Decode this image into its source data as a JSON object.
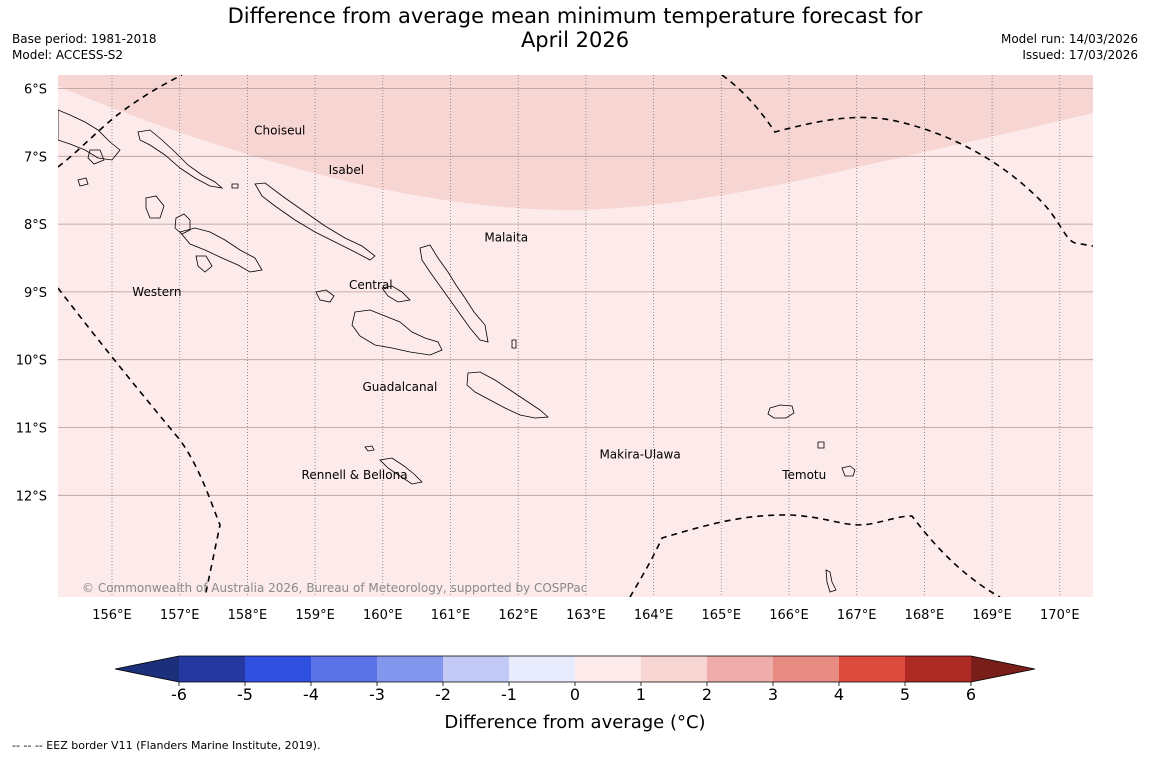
{
  "header": {
    "title_line1": "Difference from average mean minimum temperature forecast for",
    "title_line2": "April 2026",
    "base_period": "Base period: 1981-2018",
    "model": "Model: ACCESS-S2",
    "model_run": "Model run: 14/03/2026",
    "issued": "Issued: 17/03/2026"
  },
  "map": {
    "latitudes": [
      {
        "lat": -6,
        "label": "6°S"
      },
      {
        "lat": -7,
        "label": "7°S"
      },
      {
        "lat": -8,
        "label": "8°S"
      },
      {
        "lat": -9,
        "label": "9°S"
      },
      {
        "lat": -10,
        "label": "10°S"
      },
      {
        "lat": -11,
        "label": "11°S"
      },
      {
        "lat": -12,
        "label": "12°S"
      }
    ],
    "longitudes": [
      {
        "lon": 156,
        "label": "156°E"
      },
      {
        "lon": 157,
        "label": "157°E"
      },
      {
        "lon": 158,
        "label": "158°E"
      },
      {
        "lon": 159,
        "label": "159°E"
      },
      {
        "lon": 160,
        "label": "160°E"
      },
      {
        "lon": 161,
        "label": "161°E"
      },
      {
        "lon": 162,
        "label": "162°E"
      },
      {
        "lon": 163,
        "label": "163°E"
      },
      {
        "lon": 164,
        "label": "164°E"
      },
      {
        "lon": 165,
        "label": "165°E"
      },
      {
        "lon": 166,
        "label": "166°E"
      },
      {
        "lon": 167,
        "label": "167°E"
      },
      {
        "lon": 168,
        "label": "168°E"
      },
      {
        "lon": 169,
        "label": "169°E"
      },
      {
        "lon": 170,
        "label": "170°E"
      }
    ],
    "provinces": [
      {
        "name": "Choiseul",
        "lon": 158.1,
        "lat": -6.62
      },
      {
        "name": "Isabel",
        "lon": 159.2,
        "lat": -7.2
      },
      {
        "name": "Malaita",
        "lon": 161.5,
        "lat": -8.2
      },
      {
        "name": "Western",
        "lon": 156.3,
        "lat": -9.0
      },
      {
        "name": "Central",
        "lon": 159.5,
        "lat": -8.9
      },
      {
        "name": "Guadalcanal",
        "lon": 159.7,
        "lat": -10.4
      },
      {
        "name": "Makira-Ulawa",
        "lon": 163.2,
        "lat": -11.4
      },
      {
        "name": "Rennell & Bellona",
        "lon": 158.8,
        "lat": -11.7
      },
      {
        "name": "Temotu",
        "lon": 165.9,
        "lat": -11.7
      }
    ],
    "anomaly_zones": [
      {
        "category": "1 to 2",
        "color": "#f6d5d3",
        "note": "northern band"
      },
      {
        "category": "0 to 1",
        "color": "#fcebea",
        "note": "remaining area"
      }
    ],
    "copyright": "© Commonwealth of Australia 2026, Bureau of Meteorology, supported by COSPPac"
  },
  "colorbar": {
    "title": "Difference from average (°C)",
    "ticks": [
      "-6",
      "-5",
      "-4",
      "-3",
      "-2",
      "-1",
      "0",
      "1",
      "2",
      "3",
      "4",
      "5",
      "6"
    ],
    "colors": [
      "#24389f",
      "#3050e0",
      "#5b73e6",
      "#8396ee",
      "#c3c9f5",
      "#e8ebfc",
      "#fcebea",
      "#f6d5d3",
      "#eeadaa",
      "#e78a82",
      "#dd4b3f",
      "#ae2a24"
    ],
    "under_color": "#1c2f7a",
    "over_color": "#7a1e1a"
  },
  "footnote": "--  --  -- EEZ border V11 (Flanders Marine Institute, 2019)."
}
